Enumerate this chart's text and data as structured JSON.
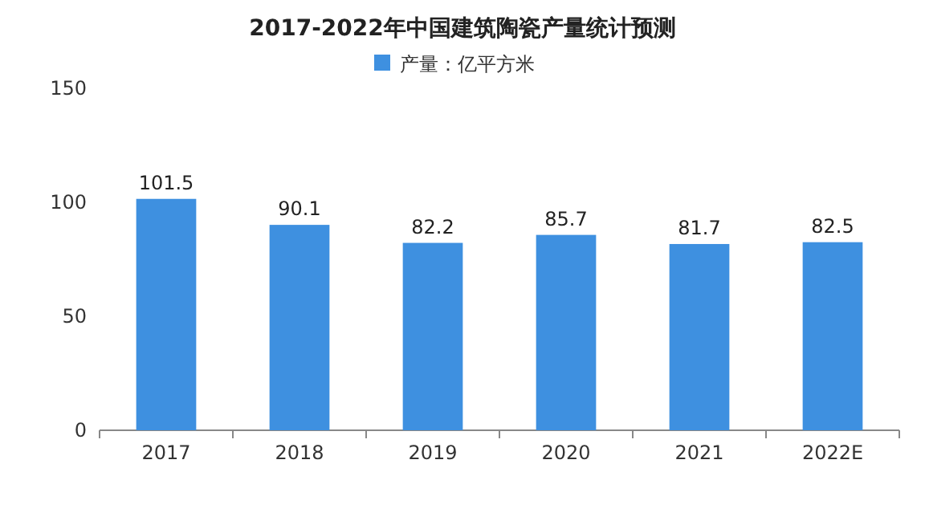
{
  "chart_data": {
    "type": "bar",
    "title": "2017-2022年中国建筑陶瓷产量统计预测",
    "categories": [
      "2017",
      "2018",
      "2019",
      "2020",
      "2021",
      "2022E"
    ],
    "series": [
      {
        "name": "产量：亿平方米",
        "color": "#3e90e0",
        "values": [
          101.5,
          90.1,
          82.2,
          85.7,
          81.7,
          82.5
        ]
      }
    ],
    "ylim": [
      0,
      150
    ],
    "yticks": [
      0,
      50,
      100,
      150
    ],
    "data_labels": true,
    "legend": "top",
    "grid": false
  }
}
